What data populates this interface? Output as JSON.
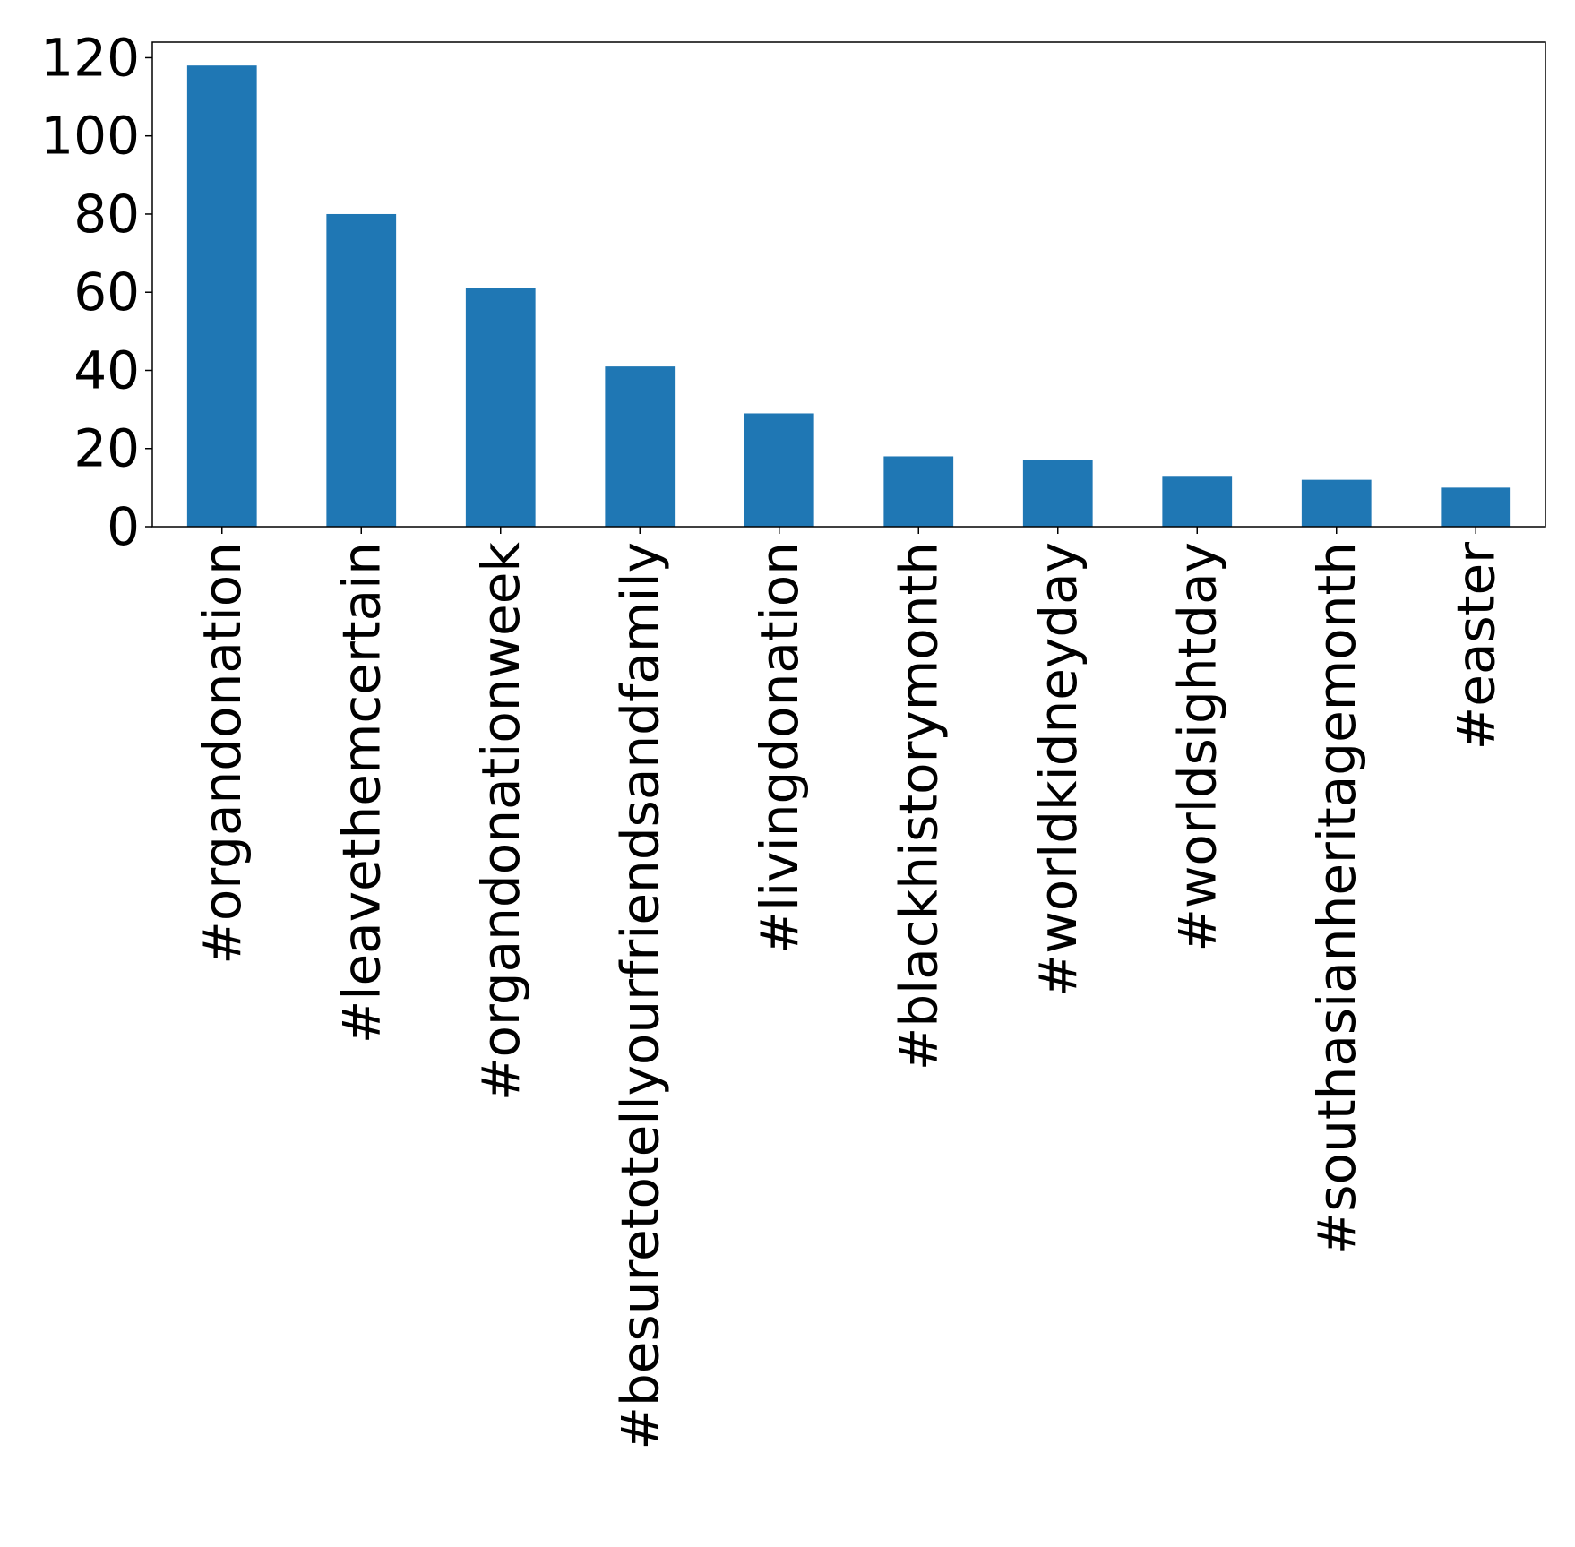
{
  "chart_data": {
    "type": "bar",
    "title": "",
    "xlabel": "",
    "ylabel": "",
    "categories": [
      "#organdonation",
      "#leavethemcertain",
      "#organdonationweek",
      "#besuretotellyourfriendsandfamily",
      "#livingdonation",
      "#blackhistorymonth",
      "#worldkidneyday",
      "#worldsightday",
      "#southasianheritagemonth",
      "#easter"
    ],
    "values": [
      118,
      80,
      61,
      41,
      29,
      18,
      17,
      13,
      12,
      10
    ],
    "ylim": [
      0,
      124
    ],
    "yticks": [
      0,
      20,
      40,
      60,
      80,
      100,
      120
    ],
    "grid": false,
    "legend": "none",
    "bar_color": "#1f77b4",
    "axis_color": "#000000"
  }
}
